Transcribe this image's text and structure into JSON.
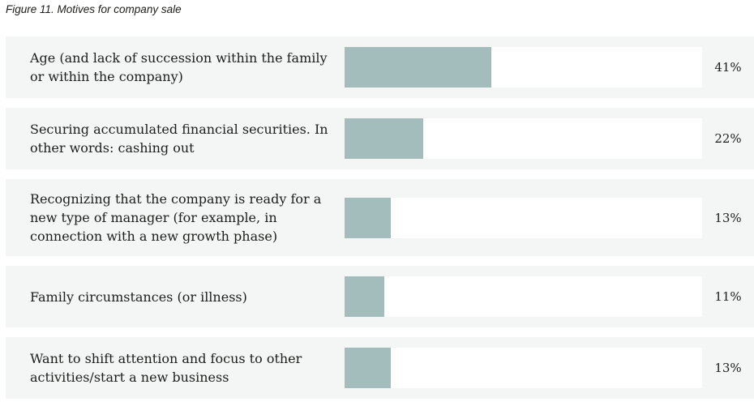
{
  "figure": {
    "title": "Figure 11. Motives for company sale"
  },
  "colors": {
    "bar_fill": "#a3bcbc",
    "bar_track": "#ffffff",
    "row_background": "#f4f6f6",
    "text_color": "#1d1d1b",
    "page_background": "#ffffff"
  },
  "chart_data": {
    "type": "bar",
    "orientation": "horizontal",
    "title": "Figure 11. Motives for company sale",
    "categories": [
      "Age (and lack of succession within the family or within the company)",
      "Securing accumulated financial securities. In other words: cashing out",
      "Recognizing that the company is ready for a new type of manager (for example, in connection with a new growth phase)",
      "Family circumstances (or illness)",
      "Want to shift attention and focus to other activities/start a new business"
    ],
    "values": [
      41,
      22,
      13,
      11,
      13
    ],
    "value_labels": [
      "41%",
      "22%",
      "13%",
      "11%",
      "13%"
    ],
    "xlim": [
      0,
      100
    ],
    "grid": false,
    "legend": false
  }
}
